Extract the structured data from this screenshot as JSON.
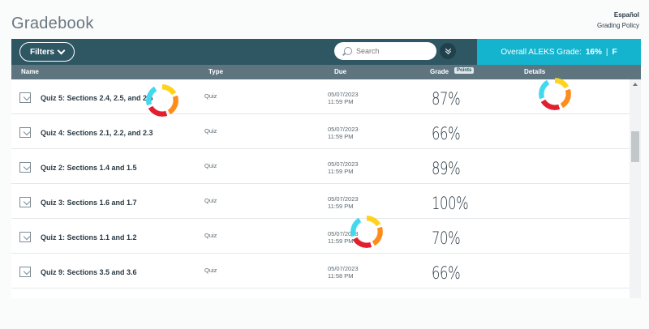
{
  "header": {
    "title": "Gradebook",
    "language_link": "Español",
    "grading_policy_link": "Grading Policy"
  },
  "toolbar": {
    "filters_label": "Filters",
    "search_placeholder": "Search",
    "overall_label": "Overall ALEKS Grade:",
    "overall_percent": "16%",
    "overall_separator": "|",
    "overall_letter": "F"
  },
  "columns": {
    "name": "Name",
    "type": "Type",
    "due": "Due",
    "grade": "Grade",
    "points_chip": "Points",
    "details": "Details"
  },
  "rows": [
    {
      "name": "Quiz 5: Sections 2.4, 2.5, and 2.6",
      "type": "Quiz",
      "due_date": "05/07/2023",
      "due_time": "11:59 PM",
      "grade": "87%"
    },
    {
      "name": "Quiz 4: Sections 2.1, 2.2, and 2.3",
      "type": "Quiz",
      "due_date": "05/07/2023",
      "due_time": "11:59 PM",
      "grade": "66%"
    },
    {
      "name": "Quiz 2: Sections 1.4 and 1.5",
      "type": "Quiz",
      "due_date": "05/07/2023",
      "due_time": "11:59 PM",
      "grade": "89%"
    },
    {
      "name": "Quiz 3: Sections 1.6 and 1.7",
      "type": "Quiz",
      "due_date": "05/07/2023",
      "due_time": "11:59 PM",
      "grade": "100%"
    },
    {
      "name": "Quiz 1: Sections 1.1 and 1.2",
      "type": "Quiz",
      "due_date": "05/07/2023",
      "due_time": "11:59 PM",
      "grade": "70%"
    },
    {
      "name": "Quiz 9: Sections 3.5 and 3.6",
      "type": "Quiz",
      "due_date": "05/07/2023",
      "due_time": "11:58 PM",
      "grade": "66%"
    }
  ],
  "colors": {
    "toolbar_bg": "#2e5663",
    "overall_bg": "#14b4cf",
    "header_bg": "#5e7580"
  }
}
